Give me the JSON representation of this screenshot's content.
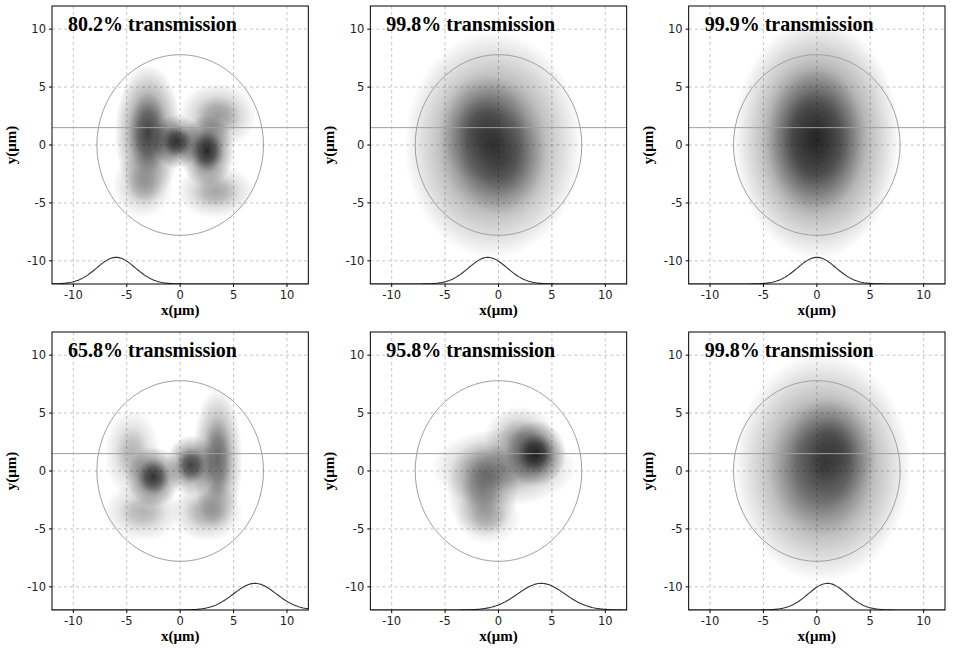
{
  "chart_data": [
    {
      "type": "image",
      "title": "80.2% transmission",
      "x_label": "x(μm)",
      "y_label": "y(μm)",
      "xlim": [
        -12,
        12
      ],
      "ylim": [
        -12,
        12
      ],
      "xticks": [
        -10,
        -5,
        0,
        5,
        10
      ],
      "yticks": [
        -10,
        -5,
        0,
        5,
        10
      ],
      "grid": true,
      "core_radius": 7.8,
      "line_y": 1.5,
      "profile": {
        "center": -6,
        "sigma": 1.8,
        "base": -12,
        "peak": -9.7
      },
      "blobs": [
        {
          "x": -3,
          "y": 1,
          "sx": 1.2,
          "sy": 2.3,
          "intensity": 0.75
        },
        {
          "x": -0.3,
          "y": 0.3,
          "sx": 0.9,
          "sy": 0.9,
          "intensity": 0.8
        },
        {
          "x": 2.5,
          "y": -0.5,
          "sx": 1.0,
          "sy": 1.2,
          "intensity": 0.85
        },
        {
          "x": 3.5,
          "y": 2.5,
          "sx": 1.4,
          "sy": 1.1,
          "intensity": 0.4
        },
        {
          "x": 3.3,
          "y": -4,
          "sx": 1.4,
          "sy": 0.9,
          "intensity": 0.35
        },
        {
          "x": -3.5,
          "y": -3.5,
          "sx": 1.1,
          "sy": 1.1,
          "intensity": 0.3
        }
      ]
    },
    {
      "type": "image",
      "title": "99.8% transmission",
      "x_label": "x(μm)",
      "y_label": "y(μm)",
      "xlim": [
        -12,
        12
      ],
      "ylim": [
        -12,
        12
      ],
      "xticks": [
        -10,
        -5,
        0,
        5,
        10
      ],
      "yticks": [
        -10,
        -5,
        0,
        5,
        10
      ],
      "grid": true,
      "core_radius": 7.8,
      "line_y": 1.5,
      "profile": {
        "center": -1,
        "sigma": 1.8,
        "base": -12,
        "peak": -9.7
      },
      "blobs": [
        {
          "x": -0.5,
          "y": 0,
          "sx": 3.2,
          "sy": 3.8,
          "intensity": 0.7
        },
        {
          "x": -1.5,
          "y": 1.5,
          "sx": 1.6,
          "sy": 1.8,
          "intensity": 0.35
        },
        {
          "x": 0.5,
          "y": -1.5,
          "sx": 1.6,
          "sy": 1.8,
          "intensity": 0.3
        }
      ]
    },
    {
      "type": "image",
      "title": "99.9% transmission",
      "x_label": "x(μm)",
      "y_label": "y(μm)",
      "xlim": [
        -12,
        12
      ],
      "ylim": [
        -12,
        12
      ],
      "xticks": [
        -10,
        -5,
        0,
        5,
        10
      ],
      "yticks": [
        -10,
        -5,
        0,
        5,
        10
      ],
      "grid": true,
      "core_radius": 7.8,
      "line_y": 1.5,
      "profile": {
        "center": 0,
        "sigma": 1.8,
        "base": -12,
        "peak": -9.7
      },
      "blobs": [
        {
          "x": 0,
          "y": 0.5,
          "sx": 3.0,
          "sy": 4.0,
          "intensity": 0.8
        },
        {
          "x": -0.5,
          "y": 0.5,
          "sx": 1.8,
          "sy": 2.6,
          "intensity": 0.3
        }
      ]
    },
    {
      "type": "image",
      "title": "65.8% transmission",
      "x_label": "x(μm)",
      "y_label": "y(μm)",
      "xlim": [
        -12,
        12
      ],
      "ylim": [
        -12,
        12
      ],
      "xticks": [
        -10,
        -5,
        0,
        5,
        10
      ],
      "yticks": [
        -10,
        -5,
        0,
        5,
        10
      ],
      "grid": true,
      "core_radius": 7.8,
      "line_y": 1.5,
      "profile": {
        "center": 7,
        "sigma": 2.0,
        "base": -12,
        "peak": -9.7
      },
      "blobs": [
        {
          "x": -2.5,
          "y": -0.5,
          "sx": 1.0,
          "sy": 1.0,
          "intensity": 0.8
        },
        {
          "x": 1,
          "y": 0.5,
          "sx": 0.9,
          "sy": 1.0,
          "intensity": 0.75
        },
        {
          "x": 3.5,
          "y": 1,
          "sx": 0.9,
          "sy": 2.4,
          "intensity": 0.6
        },
        {
          "x": -4.5,
          "y": 1.5,
          "sx": 1.0,
          "sy": 1.5,
          "intensity": 0.3
        },
        {
          "x": -3.5,
          "y": -3.5,
          "sx": 1.4,
          "sy": 1.0,
          "intensity": 0.3
        },
        {
          "x": 2.5,
          "y": -3.5,
          "sx": 1.3,
          "sy": 1.0,
          "intensity": 0.35
        }
      ]
    },
    {
      "type": "image",
      "title": "95.8% transmission",
      "x_label": "x(μm)",
      "y_label": "y(μm)",
      "xlim": [
        -12,
        12
      ],
      "ylim": [
        -12,
        12
      ],
      "xticks": [
        -10,
        -5,
        0,
        5,
        10
      ],
      "yticks": [
        -10,
        -5,
        0,
        5,
        10
      ],
      "grid": true,
      "core_radius": 7.8,
      "line_y": 1.5,
      "profile": {
        "center": 4,
        "sigma": 2.2,
        "base": -12,
        "peak": -9.7
      },
      "blobs": [
        {
          "x": 3.5,
          "y": 1.5,
          "sx": 1.1,
          "sy": 1.1,
          "intensity": 0.85
        },
        {
          "x": 0.5,
          "y": 0.3,
          "sx": 2.6,
          "sy": 1.3,
          "intensity": 0.45
        },
        {
          "x": -1.5,
          "y": -1.5,
          "sx": 1.3,
          "sy": 1.6,
          "intensity": 0.45
        },
        {
          "x": 2,
          "y": 3,
          "sx": 1.3,
          "sy": 1.0,
          "intensity": 0.35
        },
        {
          "x": -1,
          "y": -4,
          "sx": 1.2,
          "sy": 0.9,
          "intensity": 0.25
        }
      ]
    },
    {
      "type": "image",
      "title": "99.8% transmission",
      "x_label": "x(μm)",
      "y_label": "y(μm)",
      "xlim": [
        -12,
        12
      ],
      "ylim": [
        -12,
        12
      ],
      "xticks": [
        -10,
        -5,
        0,
        5,
        10
      ],
      "yticks": [
        -10,
        -5,
        0,
        5,
        10
      ],
      "grid": true,
      "core_radius": 7.8,
      "line_y": 1.5,
      "profile": {
        "center": 1,
        "sigma": 1.8,
        "base": -12,
        "peak": -9.7
      },
      "blobs": [
        {
          "x": 0.5,
          "y": 0.3,
          "sx": 3.2,
          "sy": 3.8,
          "intensity": 0.7
        },
        {
          "x": 1.5,
          "y": 1.8,
          "sx": 1.6,
          "sy": 1.8,
          "intensity": 0.4
        }
      ]
    }
  ]
}
